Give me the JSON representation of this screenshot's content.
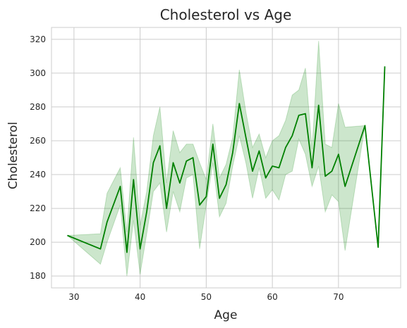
{
  "chart_data": {
    "type": "line",
    "title": "Cholesterol vs Age",
    "xlabel": "Age",
    "ylabel": "Cholesterol",
    "xlim": [
      26.6,
      79.4
    ],
    "ylim": [
      173,
      327
    ],
    "xticks": [
      30,
      40,
      50,
      60,
      70
    ],
    "yticks": [
      180,
      200,
      220,
      240,
      260,
      280,
      300,
      320
    ],
    "grid": true,
    "legend": "none",
    "series": [
      {
        "color": "#008000",
        "band_color": "#008000",
        "x": [
          29,
          34,
          35,
          37,
          38,
          39,
          40,
          41,
          42,
          43,
          44,
          45,
          46,
          47,
          48,
          49,
          50,
          51,
          52,
          53,
          54,
          55,
          56,
          57,
          58,
          59,
          60,
          61,
          62,
          63,
          64,
          65,
          66,
          67,
          68,
          69,
          70,
          71,
          74,
          76,
          77
        ],
        "y": [
          204,
          196,
          212,
          233,
          194,
          237,
          196,
          218,
          247,
          257,
          220,
          247,
          235,
          248,
          250,
          222,
          227,
          258,
          226,
          234,
          253,
          282,
          262,
          242,
          254,
          238,
          245,
          244,
          256,
          263,
          275,
          276,
          244,
          281,
          239,
          242,
          252,
          233,
          269,
          197,
          304
        ],
        "ci_lower": [
          204,
          187,
          200,
          222,
          180,
          213,
          181,
          205,
          230,
          235,
          206,
          230,
          218,
          238,
          240,
          196,
          222,
          247,
          215,
          223,
          245,
          263,
          247,
          226,
          244,
          226,
          231,
          225,
          240,
          242,
          261,
          252,
          233,
          245,
          218,
          228,
          224,
          195,
          269,
          197,
          304
        ],
        "ci_upper": [
          204,
          205,
          229,
          244,
          206,
          262,
          210,
          230,
          263,
          280,
          235,
          266,
          253,
          258,
          258,
          247,
          237,
          270,
          238,
          246,
          262,
          302,
          277,
          256,
          264,
          250,
          260,
          263,
          272,
          287,
          290,
          303,
          255,
          319,
          258,
          256,
          282,
          268,
          269,
          197,
          304
        ]
      }
    ]
  }
}
